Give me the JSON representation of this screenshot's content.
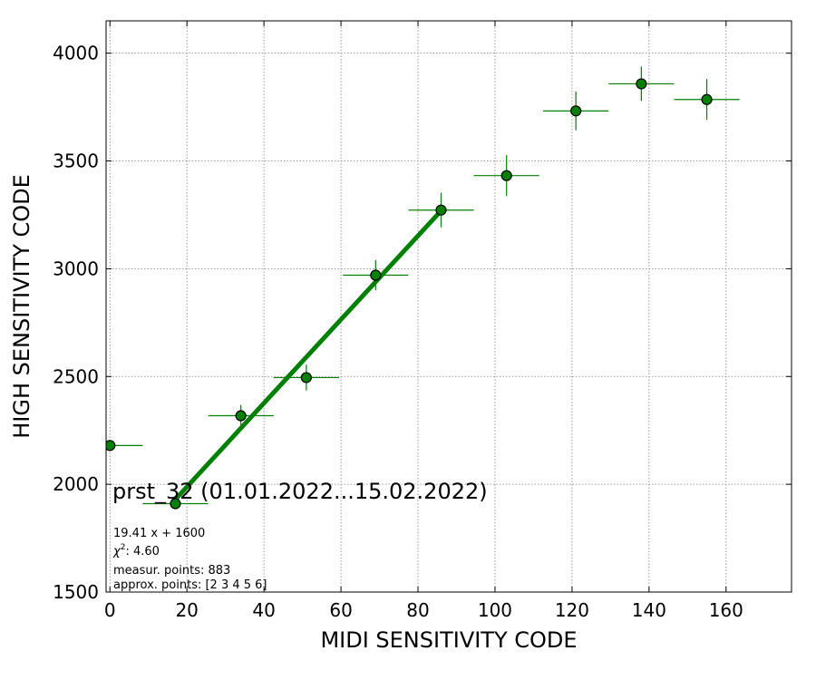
{
  "chart_data": {
    "type": "scatter",
    "xlabel": "MIDI SENSITIVITY CODE",
    "ylabel": "HIGH SENSITIVITY CODE",
    "xlim": [
      -1,
      177
    ],
    "ylim": [
      1500,
      4150
    ],
    "xticks": [
      0,
      20,
      40,
      60,
      80,
      100,
      120,
      140,
      160
    ],
    "yticks": [
      1500,
      2000,
      2500,
      3000,
      3500,
      4000
    ],
    "grid": true,
    "points": [
      {
        "x": 0,
        "y": 2180,
        "xerr": 8.5,
        "yerr": 0
      },
      {
        "x": 17,
        "y": 1910,
        "xerr": 8.5,
        "yerr": 20
      },
      {
        "x": 34,
        "y": 2318,
        "xerr": 8.5,
        "yerr": 50
      },
      {
        "x": 51,
        "y": 2495,
        "xerr": 8.5,
        "yerr": 60
      },
      {
        "x": 69,
        "y": 2970,
        "xerr": 8.5,
        "yerr": 70
      },
      {
        "x": 86,
        "y": 3272,
        "xerr": 8.5,
        "yerr": 80
      },
      {
        "x": 103,
        "y": 3432,
        "xerr": 8.5,
        "yerr": 95
      },
      {
        "x": 121,
        "y": 3732,
        "xerr": 8.5,
        "yerr": 90
      },
      {
        "x": 138,
        "y": 3858,
        "xerr": 8.5,
        "yerr": 80
      },
      {
        "x": 155,
        "y": 3785,
        "xerr": 8.5,
        "yerr": 95
      }
    ],
    "fit_line": {
      "x": [
        17,
        86
      ],
      "slope": 19.41,
      "intercept": 1600
    },
    "annotations": {
      "title": "prst_32 (01.01.2022...15.02.2022)",
      "equation": "19.41 x + 1600",
      "chi2": ": 4.60",
      "measur_points": "measur. points: 883",
      "approx_points": "approx. points: [2 3 4 5 6]"
    },
    "colors": {
      "marker": "#008000",
      "marker_edge": "#000000",
      "fit": "#008000",
      "grid": "#808080"
    }
  }
}
